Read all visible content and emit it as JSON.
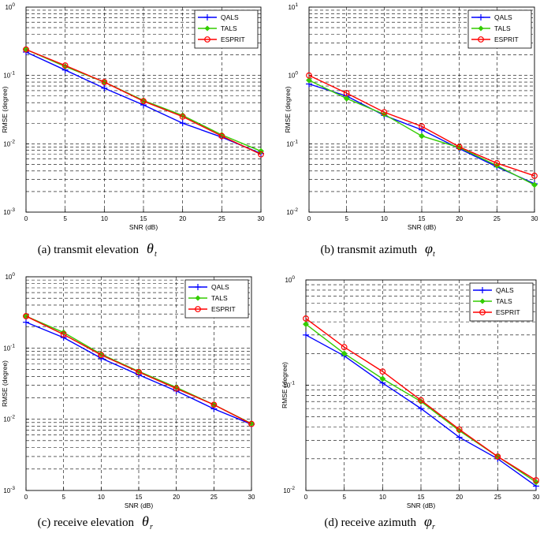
{
  "chart_data": [
    {
      "type": "line",
      "caption": "(a) transmit elevation",
      "caption_symbol": "θ",
      "caption_sub": "t",
      "xlabel": "SNR (dB)",
      "ylabel": "RMSE (degree)",
      "x": [
        0,
        5,
        10,
        15,
        20,
        25,
        30
      ],
      "xlim": [
        0,
        30
      ],
      "ylim": [
        0.001,
        1
      ],
      "yscale": "log",
      "y_ticks": [
        "10-3",
        "10-2",
        "10-1",
        "100"
      ],
      "x_ticks": [
        "0",
        "5",
        "10",
        "15",
        "20",
        "25",
        "30"
      ],
      "legend_position": "top-right",
      "series": [
        {
          "name": "QALS",
          "color": "#0000ff",
          "marker": "plus",
          "values": [
            0.22,
            0.12,
            0.065,
            0.037,
            0.02,
            0.0125,
            0.0072
          ]
        },
        {
          "name": "TALS",
          "color": "#33cc00",
          "marker": "diamond",
          "values": [
            0.24,
            0.135,
            0.08,
            0.043,
            0.026,
            0.0135,
            0.0078
          ]
        },
        {
          "name": "ESPRIT",
          "color": "#ff0000",
          "marker": "circle",
          "values": [
            0.24,
            0.14,
            0.08,
            0.042,
            0.025,
            0.013,
            0.007
          ]
        }
      ]
    },
    {
      "type": "line",
      "caption": "(b) transmit azimuth",
      "caption_symbol": "φ",
      "caption_sub": "t",
      "xlabel": "SNR (dB)",
      "ylabel": "RMSE (degree)",
      "x": [
        0,
        5,
        10,
        15,
        20,
        25,
        30
      ],
      "xlim": [
        0,
        30
      ],
      "ylim": [
        0.01,
        10
      ],
      "yscale": "log",
      "y_ticks": [
        "10-2",
        "10-1",
        "100",
        "101"
      ],
      "x_ticks": [
        "0",
        "5",
        "10",
        "15",
        "20",
        "25",
        "30"
      ],
      "legend_position": "top-right",
      "series": [
        {
          "name": "QALS",
          "color": "#0000ff",
          "marker": "plus",
          "values": [
            0.75,
            0.5,
            0.26,
            0.16,
            0.085,
            0.046,
            0.026
          ]
        },
        {
          "name": "TALS",
          "color": "#33cc00",
          "marker": "diamond",
          "values": [
            0.85,
            0.46,
            0.27,
            0.13,
            0.088,
            0.048,
            0.025
          ]
        },
        {
          "name": "ESPRIT",
          "color": "#ff0000",
          "marker": "circle",
          "values": [
            1.0,
            0.55,
            0.29,
            0.18,
            0.09,
            0.052,
            0.034
          ]
        }
      ]
    },
    {
      "type": "line",
      "caption": "(c) receive elevation",
      "caption_symbol": "θ",
      "caption_sub": "r",
      "xlabel": "SNR (dB)",
      "ylabel": "RMSE (degree)",
      "x": [
        0,
        5,
        10,
        15,
        20,
        25,
        30
      ],
      "xlim": [
        0,
        30
      ],
      "ylim": [
        0.001,
        1
      ],
      "yscale": "log",
      "y_ticks": [
        "10-3",
        "10-2",
        "10-1",
        "100"
      ],
      "x_ticks": [
        "0",
        "5",
        "10",
        "15",
        "20",
        "25",
        "30"
      ],
      "legend_position": "top-right",
      "series": [
        {
          "name": "QALS",
          "color": "#0000ff",
          "marker": "plus",
          "values": [
            0.23,
            0.14,
            0.072,
            0.042,
            0.025,
            0.014,
            0.0085
          ]
        },
        {
          "name": "TALS",
          "color": "#33cc00",
          "marker": "diamond",
          "values": [
            0.28,
            0.165,
            0.082,
            0.047,
            0.028,
            0.016,
            0.0087
          ]
        },
        {
          "name": "ESPRIT",
          "color": "#ff0000",
          "marker": "circle",
          "values": [
            0.28,
            0.155,
            0.08,
            0.046,
            0.027,
            0.016,
            0.0086
          ]
        }
      ]
    },
    {
      "type": "line",
      "caption": "(d) receive azimuth",
      "caption_symbol": "φ",
      "caption_sub": "r",
      "xlabel": "SNR (dB)",
      "ylabel": "RMSE (degree)",
      "x": [
        0,
        5,
        10,
        15,
        20,
        25,
        30
      ],
      "xlim": [
        0,
        30
      ],
      "ylim": [
        0.01,
        1
      ],
      "yscale": "log",
      "y_ticks": [
        "10-2",
        "10-1",
        "100"
      ],
      "x_ticks": [
        "0",
        "5",
        "10",
        "15",
        "20",
        "25",
        "30"
      ],
      "legend_position": "top-right",
      "series": [
        {
          "name": "QALS",
          "color": "#0000ff",
          "marker": "plus",
          "values": [
            0.3,
            0.19,
            0.105,
            0.06,
            0.032,
            0.02,
            0.011
          ]
        },
        {
          "name": "TALS",
          "color": "#33cc00",
          "marker": "diamond",
          "values": [
            0.38,
            0.2,
            0.115,
            0.07,
            0.037,
            0.021,
            0.012
          ]
        },
        {
          "name": "ESPRIT",
          "color": "#ff0000",
          "marker": "circle",
          "values": [
            0.43,
            0.23,
            0.135,
            0.072,
            0.038,
            0.021,
            0.0125
          ]
        }
      ]
    }
  ]
}
